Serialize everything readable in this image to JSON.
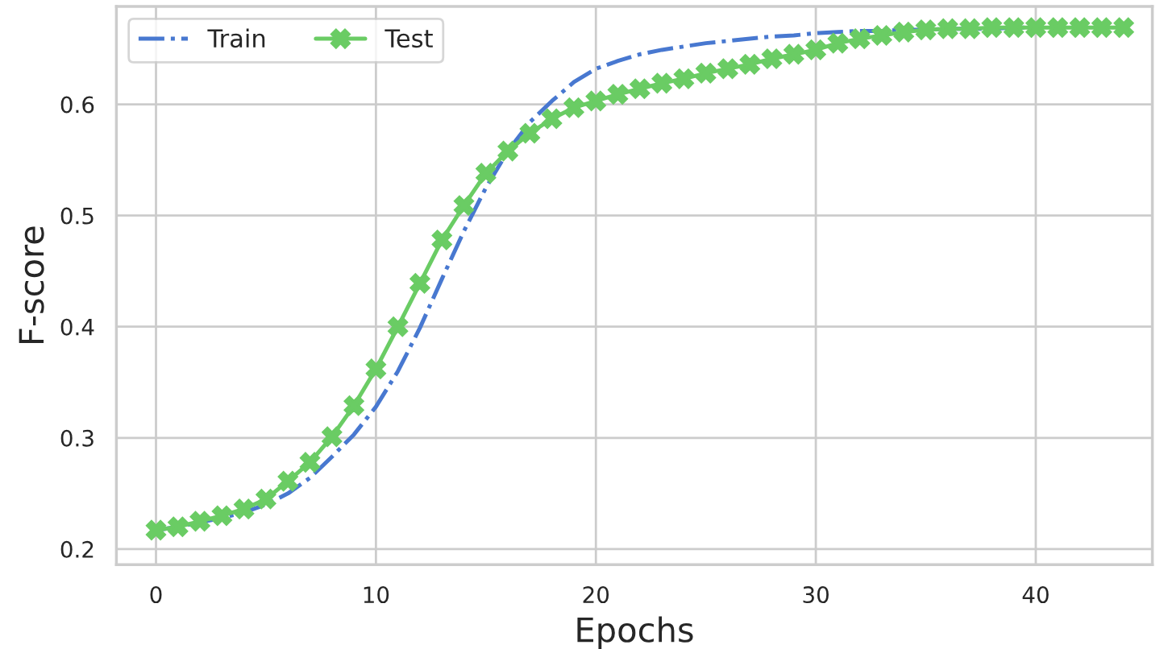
{
  "chart_data": {
    "type": "line",
    "xlabel": "Epochs",
    "ylabel": "F-score",
    "x": [
      0,
      1,
      2,
      3,
      4,
      5,
      6,
      7,
      8,
      9,
      10,
      11,
      12,
      13,
      14,
      15,
      16,
      17,
      18,
      19,
      20,
      21,
      22,
      23,
      24,
      25,
      26,
      27,
      28,
      29,
      30,
      31,
      32,
      33,
      34,
      35,
      36,
      37,
      38,
      39,
      40,
      41,
      42,
      43,
      44
    ],
    "series": [
      {
        "name": "Train",
        "color": "#4878d0",
        "line_style": "dashdot",
        "marker": "none",
        "values": [
          0.217,
          0.22,
          0.224,
          0.228,
          0.233,
          0.24,
          0.25,
          0.264,
          0.283,
          0.303,
          0.328,
          0.36,
          0.399,
          0.443,
          0.486,
          0.525,
          0.558,
          0.584,
          0.603,
          0.62,
          0.632,
          0.639,
          0.645,
          0.649,
          0.652,
          0.655,
          0.657,
          0.659,
          0.661,
          0.662,
          0.664,
          0.665,
          0.666,
          0.666,
          0.667,
          0.667,
          0.668,
          0.668,
          0.668,
          0.669,
          0.669,
          null,
          null,
          null,
          null
        ]
      },
      {
        "name": "Test",
        "color": "#6acc64",
        "line_style": "solid",
        "marker": "cross",
        "values": [
          0.217,
          0.22,
          0.225,
          0.23,
          0.236,
          0.245,
          0.261,
          0.278,
          0.301,
          0.329,
          0.362,
          0.4,
          0.439,
          0.478,
          0.509,
          0.538,
          0.558,
          0.574,
          0.587,
          0.597,
          0.603,
          0.609,
          0.614,
          0.619,
          0.623,
          0.628,
          0.632,
          0.636,
          0.641,
          0.645,
          0.649,
          0.655,
          0.659,
          0.662,
          0.665,
          0.667,
          0.668,
          0.668,
          0.669,
          0.669,
          0.669,
          0.669,
          0.669,
          0.669,
          0.669
        ]
      }
    ],
    "xlim": [
      -1.8,
      45.3
    ],
    "ylim": [
      0.186,
      0.688
    ],
    "xticks": [
      0,
      10,
      20,
      30,
      40
    ],
    "yticks": [
      0.2,
      0.3,
      0.4,
      0.5,
      0.6
    ],
    "grid": true,
    "legend": "top left"
  }
}
